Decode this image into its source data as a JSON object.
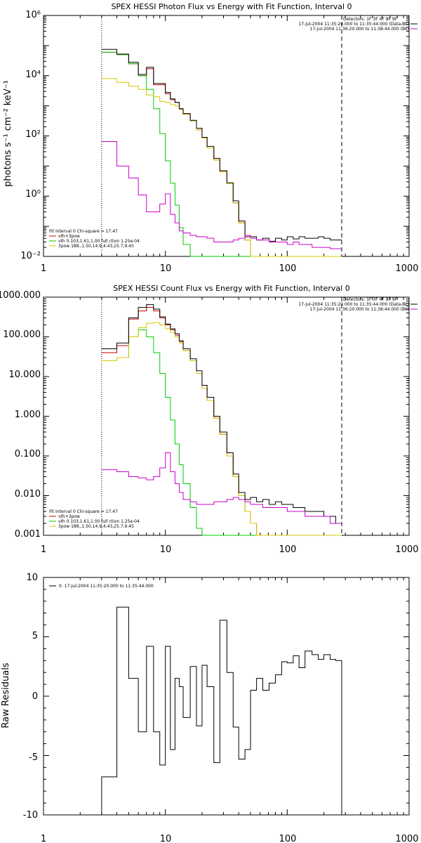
{
  "panels": {
    "photon": {
      "title": "SPEX HESSI Photon Flux vs Energy with Fit Function, Interval 0",
      "ylabel": "photons s⁻¹ cm⁻² keV⁻¹",
      "detectors": "Detectors: 1F 3F 4F 8F 9F",
      "legend_right": [
        "17-Jul-2004 11:35:20.000 to 11:35:44.000 (Data-Bk)",
        "17-Jul-2004 11:36:20.000 to 11:38:44.000 (Bk)"
      ],
      "fit_info": "Fit Interval 0   Chi-square = 17.47",
      "legend_left": [
        "vth+3pow",
        "vth 0.103,1.61,1.00  full ction 1.25e-04",
        "3pow 188.,1.50,14.9,4.43,25.7,9.45"
      ],
      "x_ticks": [
        "1",
        "10",
        "100",
        "1000"
      ],
      "y_ticks": [
        "10⁻²",
        "10⁰",
        "10²",
        "10⁴",
        "10⁶"
      ]
    },
    "count": {
      "title": "SPEX HESSI Count Flux vs Energy with Fit Function, Interval 0",
      "detectors": "Detectors: 1F 3F 4F 8F 9F",
      "legend_right": [
        "17-Jul-2004 11:35:20.000 to 11:35:44.000 (Data-Bk)",
        "17-Jul-2004 11:36:20.000 to 11:38:44.000 (Bk)"
      ],
      "fit_info": "Fit Interval 0   Chi-square = 17.47",
      "legend_left": [
        "vth+3pow",
        "vth 0.103,1.61,1.00  full ction 1.25e-04",
        "3pow 188.,1.50,14.9,4.43,25.7,9.45"
      ],
      "x_ticks": [
        "1",
        "10",
        "100",
        "1000"
      ],
      "y_ticks": [
        "0.001",
        "0.010",
        "0.100",
        "1.000",
        "10.000",
        "100.000",
        "1000.000"
      ]
    },
    "resid": {
      "ylabel": "Raw Residuals",
      "legend": "0. 17-Jul-2004 11:35:20.000 to 11:35:44.000",
      "x_ticks": [
        "1",
        "10",
        "100",
        "1000"
      ],
      "y_ticks": [
        "-10",
        "-5",
        "0",
        "5",
        "10"
      ]
    }
  },
  "chart_data": [
    {
      "type": "line",
      "title": "SPEX HESSI Photon Flux vs Energy with Fit Function, Interval 0",
      "ylabel": "photons s⁻¹ cm⁻² keV⁻¹",
      "xscale": "log",
      "yscale": "log",
      "xlim": [
        1,
        1000
      ],
      "ylim": [
        0.01,
        1000000
      ],
      "legend_placement": "bottom-left and top-right",
      "colors": {
        "data": "#000000",
        "total": "#cc0000",
        "thermal": "#00cc00",
        "nonthermal": "#d8c800",
        "background": "#cc00cc"
      },
      "vlines": [
        3,
        280
      ],
      "edges": [
        3,
        4,
        5,
        6,
        7,
        8,
        9,
        10,
        11,
        12,
        13,
        14,
        16,
        18,
        20,
        22,
        25,
        28,
        32,
        36,
        40,
        45,
        50,
        56,
        63,
        71,
        80,
        90,
        100,
        112,
        125,
        140,
        160,
        180,
        200,
        225,
        250,
        280
      ],
      "series": [
        {
          "name": "vth+3pow",
          "values": [
            60000,
            50000,
            25000,
            10000,
            17000,
            5000,
            5000,
            2500,
            1600,
            1300,
            800,
            550,
            320,
            160,
            85,
            40,
            16,
            6.5,
            2.6,
            0.6,
            0.13,
            0.035,
            0.01,
            0.01,
            0.01,
            0.01,
            0.01,
            0.01,
            0.01,
            0.01,
            0.01,
            0.01,
            0.01,
            0.01,
            0.01,
            0.01,
            0.01
          ]
        },
        {
          "name": "vth 0.103,1.61,1.00  full ction 1.25e-04",
          "values": [
            60000,
            50000,
            25000,
            10000,
            3500,
            800,
            120,
            15,
            2.7,
            0.5,
            0.09,
            0.025,
            0.01,
            0.01,
            0.01,
            0.01,
            0.01,
            0.01,
            0.01,
            0.01,
            0.01,
            0.01,
            0.01,
            0.01,
            0.01,
            0.01,
            0.01,
            0.01,
            0.01,
            0.01,
            0.01,
            0.01,
            0.01,
            0.01,
            0.01,
            0.01,
            0.01
          ]
        },
        {
          "name": "3pow 188.,1.50,14.9,4.43,25.7,9.45",
          "values": [
            8000,
            6000,
            4500,
            3500,
            2300,
            2000,
            1400,
            1300,
            1100,
            1000,
            750,
            520,
            320,
            160,
            85,
            40,
            16,
            6.5,
            2.6,
            0.6,
            0.13,
            0.035,
            0.01,
            0.01,
            0.01,
            0.01,
            0.01,
            0.01,
            0.01,
            0.01,
            0.01,
            0.01,
            0.01,
            0.01,
            0.01,
            0.01,
            0.01
          ]
        },
        {
          "name": "17-Jul-2004 11:35:20.000 to 11:35:44.000 (Data-Bk)",
          "values": [
            75000,
            52000,
            28000,
            11000,
            19000,
            5500,
            5500,
            2800,
            1700,
            1300,
            800,
            550,
            330,
            180,
            90,
            45,
            18,
            7,
            2.8,
            0.7,
            0.15,
            0.045,
            0.045,
            0.035,
            0.04,
            0.032,
            0.04,
            0.035,
            0.045,
            0.038,
            0.045,
            0.04,
            0.04,
            0.045,
            0.04,
            0.035,
            0.035
          ]
        },
        {
          "name": "17-Jul-2004 11:36:20.000 to 11:38:44.000 (Bk)",
          "values": [
            65,
            10,
            4,
            1.1,
            0.3,
            0.3,
            0.55,
            1.2,
            0.25,
            0.13,
            0.07,
            0.06,
            0.05,
            0.045,
            0.045,
            0.04,
            0.03,
            0.03,
            0.03,
            0.035,
            0.04,
            0.05,
            0.04,
            0.035,
            0.035,
            0.03,
            0.03,
            0.03,
            0.025,
            0.03,
            0.025,
            0.025,
            0.02,
            0.02,
            0.02,
            0.018,
            0.018
          ]
        }
      ]
    },
    {
      "type": "line",
      "title": "SPEX HESSI Count Flux vs Energy with Fit Function, Interval 0",
      "xscale": "log",
      "yscale": "log",
      "xlim": [
        1,
        1000
      ],
      "ylim": [
        0.001,
        1000
      ],
      "legend_placement": "bottom-left and top-right",
      "colors": {
        "data": "#000000",
        "total": "#cc0000",
        "thermal": "#00cc00",
        "nonthermal": "#d8c800",
        "background": "#cc00cc"
      },
      "vlines": [
        3,
        280
      ],
      "edges": [
        3,
        4,
        5,
        6,
        7,
        8,
        9,
        10,
        11,
        12,
        13,
        14,
        16,
        18,
        20,
        22,
        25,
        28,
        32,
        36,
        40,
        45,
        50,
        56,
        63,
        71,
        80,
        90,
        100,
        112,
        125,
        140,
        160,
        180,
        200,
        225,
        250,
        280
      ],
      "series": [
        {
          "name": "vth+3pow",
          "values": [
            40,
            60,
            280,
            450,
            550,
            450,
            300,
            200,
            150,
            110,
            75,
            45,
            25,
            12,
            5,
            2.5,
            0.9,
            0.35,
            0.1,
            0.03,
            0.01,
            0.004,
            0.002,
            0.001,
            0.001,
            0.001,
            0.001,
            0.001,
            0.001,
            0.001,
            0.001,
            0.001,
            0.001,
            0.001,
            0.001,
            0.001,
            0.001
          ]
        },
        {
          "name": "vth 0.103,1.61,1.00  full ction 1.25e-04",
          "values": [
            25,
            30,
            100,
            150,
            100,
            40,
            12,
            3,
            0.8,
            0.2,
            0.06,
            0.02,
            0.005,
            0.0015,
            0.001,
            0.001,
            0.001,
            0.001,
            0.001,
            0.001,
            0.001,
            0.001,
            0.001,
            0.001,
            0.001,
            0.001,
            0.001,
            0.001,
            0.001,
            0.001,
            0.001,
            0.001,
            0.001,
            0.001,
            0.001,
            0.001,
            0.001
          ]
        },
        {
          "name": "3pow 188.,1.50,14.9,4.43,25.7,9.45",
          "values": [
            25,
            30,
            100,
            170,
            220,
            230,
            200,
            160,
            130,
            100,
            70,
            45,
            25,
            12,
            5,
            2.5,
            0.9,
            0.35,
            0.1,
            0.03,
            0.01,
            0.004,
            0.002,
            0.001,
            0.001,
            0.001,
            0.001,
            0.001,
            0.001,
            0.001,
            0.001,
            0.001,
            0.001,
            0.001,
            0.001,
            0.001,
            0.001
          ]
        },
        {
          "name": "17-Jul-2004 11:35:20.000 to 11:35:44.000 (Data-Bk)",
          "values": [
            50,
            70,
            300,
            550,
            650,
            500,
            320,
            210,
            160,
            120,
            80,
            50,
            28,
            14,
            6,
            3,
            1,
            0.4,
            0.12,
            0.035,
            0.012,
            0.008,
            0.009,
            0.007,
            0.008,
            0.006,
            0.007,
            0.006,
            0.006,
            0.005,
            0.005,
            0.004,
            0.004,
            0.004,
            0.003,
            0.003,
            0.002
          ]
        },
        {
          "name": "17-Jul-2004 11:36:20.000 to 11:38:44.000 (Bk)",
          "values": [
            0.045,
            0.04,
            0.03,
            0.028,
            0.025,
            0.03,
            0.05,
            0.12,
            0.04,
            0.02,
            0.012,
            0.008,
            0.007,
            0.006,
            0.006,
            0.006,
            0.007,
            0.007,
            0.008,
            0.009,
            0.008,
            0.007,
            0.006,
            0.006,
            0.005,
            0.005,
            0.005,
            0.005,
            0.004,
            0.004,
            0.004,
            0.003,
            0.003,
            0.003,
            0.003,
            0.002,
            0.002
          ]
        }
      ]
    },
    {
      "type": "line",
      "ylabel": "Raw Residuals",
      "xscale": "log",
      "xlim": [
        1,
        1000
      ],
      "ylim": [
        -10,
        10
      ],
      "legend_placement": "top-left",
      "edges": [
        3,
        4,
        5,
        6,
        7,
        8,
        9,
        10,
        11,
        12,
        13,
        14,
        16,
        18,
        20,
        22,
        25,
        28,
        32,
        36,
        40,
        45,
        50,
        56,
        63,
        71,
        80,
        90,
        100,
        112,
        125,
        140,
        160,
        180,
        200,
        225,
        250,
        280
      ],
      "series": [
        {
          "name": "0. 17-Jul-2004 11:35:20.000 to 11:35:44.000",
          "values": [
            -6.8,
            7.5,
            1.5,
            -3,
            4.2,
            -3,
            -5.8,
            4.2,
            -4.5,
            1.5,
            0.8,
            -1.8,
            2.5,
            -2.5,
            2.6,
            0.8,
            -5.6,
            6.4,
            2,
            -2.6,
            -5.3,
            -4.5,
            0.5,
            1.5,
            0.5,
            1.1,
            1.8,
            2.9,
            2.8,
            3.4,
            2.4,
            3.8,
            3.5,
            3.1,
            3.5,
            3.1,
            3
          ]
        }
      ]
    }
  ]
}
